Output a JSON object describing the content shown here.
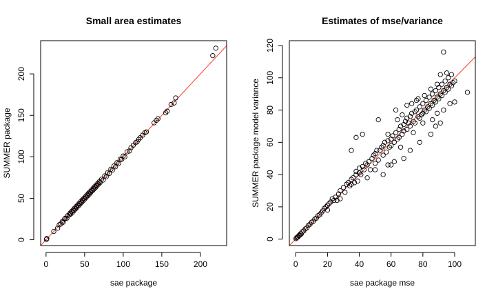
{
  "chart_data": [
    {
      "type": "scatter",
      "title": "Small area estimates",
      "xlabel": "sae package",
      "ylabel": "SUMMER package",
      "xlim": [
        -7,
        234
      ],
      "ylim": [
        -7,
        240
      ],
      "xticks": [
        0,
        50,
        100,
        150,
        200
      ],
      "yticks": [
        0,
        50,
        100,
        150,
        200
      ],
      "reference_line": {
        "slope": 1,
        "intercept": 0,
        "color": "#ff3b30"
      },
      "series": [
        {
          "points": [
            [
              0.5,
              0.5
            ],
            [
              1,
              1.5
            ],
            [
              10,
              10
            ],
            [
              15,
              14
            ],
            [
              17,
              18
            ],
            [
              19,
              19
            ],
            [
              21,
              22
            ],
            [
              22,
              21
            ],
            [
              24,
              25
            ],
            [
              25,
              26
            ],
            [
              27,
              26
            ],
            [
              28,
              29
            ],
            [
              30,
              30
            ],
            [
              31,
              32
            ],
            [
              32,
              31
            ],
            [
              33,
              34
            ],
            [
              34,
              33
            ],
            [
              35,
              36
            ],
            [
              36,
              35
            ],
            [
              37,
              38
            ],
            [
              38,
              37
            ],
            [
              39,
              40
            ],
            [
              40,
              39
            ],
            [
              41,
              42
            ],
            [
              42,
              41
            ],
            [
              43,
              44
            ],
            [
              44,
              43
            ],
            [
              45,
              46
            ],
            [
              46,
              45
            ],
            [
              47,
              48
            ],
            [
              48,
              47
            ],
            [
              49,
              50
            ],
            [
              50,
              49
            ],
            [
              51,
              52
            ],
            [
              52,
              51
            ],
            [
              53,
              54
            ],
            [
              54,
              53
            ],
            [
              55,
              56
            ],
            [
              56,
              55
            ],
            [
              57,
              58
            ],
            [
              58,
              57
            ],
            [
              59,
              60
            ],
            [
              60,
              59
            ],
            [
              61,
              62
            ],
            [
              62,
              61
            ],
            [
              63,
              64
            ],
            [
              64,
              63
            ],
            [
              65,
              66
            ],
            [
              66,
              65
            ],
            [
              67,
              68
            ],
            [
              68,
              67
            ],
            [
              69,
              70
            ],
            [
              70,
              69
            ],
            [
              72,
              73
            ],
            [
              74,
              72
            ],
            [
              76,
              77
            ],
            [
              78,
              76
            ],
            [
              80,
              81
            ],
            [
              82,
              80
            ],
            [
              84,
              85
            ],
            [
              86,
              84
            ],
            [
              88,
              89
            ],
            [
              90,
              88
            ],
            [
              92,
              93
            ],
            [
              94,
              92
            ],
            [
              96,
              97
            ],
            [
              98,
              97
            ],
            [
              100,
              101
            ],
            [
              102,
              100
            ],
            [
              105,
              106
            ],
            [
              108,
              107
            ],
            [
              110,
              111
            ],
            [
              113,
              114
            ],
            [
              116,
              117
            ],
            [
              118,
              118
            ],
            [
              120,
              121
            ],
            [
              122,
              123
            ],
            [
              125,
              126
            ],
            [
              128,
              129
            ],
            [
              130,
              130
            ],
            [
              140,
              141
            ],
            [
              143,
              144
            ],
            [
              145,
              146
            ],
            [
              155,
              153
            ],
            [
              157,
              155
            ],
            [
              162,
              163
            ],
            [
              166,
              165
            ],
            [
              168,
              171
            ],
            [
              216,
              222
            ],
            [
              220,
              231
            ]
          ]
        }
      ]
    },
    {
      "type": "scatter",
      "title": "Estimates of mse/variance",
      "xlabel": "sae package mse",
      "ylabel": "SUMMER package model variance",
      "xlim": [
        -4,
        113
      ],
      "ylim": [
        -4,
        123
      ],
      "xticks": [
        0,
        20,
        40,
        60,
        80,
        100
      ],
      "yticks": [
        0,
        20,
        40,
        60,
        80,
        100,
        120
      ],
      "reference_line": {
        "slope": 1,
        "intercept": 0,
        "color": "#ff3b30"
      },
      "series": [
        {
          "points": [
            [
              0.2,
              0.3
            ],
            [
              0.5,
              0.8
            ],
            [
              1,
              1.2
            ],
            [
              1.5,
              1.3
            ],
            [
              2,
              2.2
            ],
            [
              2.5,
              2.4
            ],
            [
              3,
              3.3
            ],
            [
              3.5,
              3.2
            ],
            [
              4,
              4.5
            ],
            [
              5,
              5
            ],
            [
              6,
              6.3
            ],
            [
              7,
              7
            ],
            [
              8,
              8.5
            ],
            [
              9,
              9.2
            ],
            [
              10,
              10.5
            ],
            [
              11,
              11
            ],
            [
              12,
              12.5
            ],
            [
              13,
              13
            ],
            [
              14,
              14.5
            ],
            [
              15,
              15
            ],
            [
              16,
              16.2
            ],
            [
              17,
              17.5
            ],
            [
              18,
              19
            ],
            [
              19,
              20
            ],
            [
              20,
              21
            ],
            [
              20,
              18
            ],
            [
              21,
              22
            ],
            [
              22,
              23
            ],
            [
              23,
              25
            ],
            [
              24,
              24
            ],
            [
              25,
              26
            ],
            [
              26,
              24
            ],
            [
              27,
              28
            ],
            [
              28,
              30
            ],
            [
              28,
              25
            ],
            [
              30,
              32
            ],
            [
              31,
              29
            ],
            [
              32,
              34
            ],
            [
              33,
              35
            ],
            [
              34,
              33
            ],
            [
              35,
              37
            ],
            [
              35,
              34
            ],
            [
              36,
              38
            ],
            [
              37,
              35
            ],
            [
              38,
              40
            ],
            [
              38,
              42
            ],
            [
              39,
              36
            ],
            [
              40,
              41
            ],
            [
              40,
              44
            ],
            [
              41,
              40
            ],
            [
              42,
              45
            ],
            [
              43,
              43
            ],
            [
              44,
              47
            ],
            [
              45,
              46
            ],
            [
              46,
              48
            ],
            [
              47,
              43
            ],
            [
              48,
              50
            ],
            [
              49,
              52
            ],
            [
              50,
              53
            ],
            [
              50,
              47
            ],
            [
              51,
              55
            ],
            [
              52,
              49
            ],
            [
              53,
              55
            ],
            [
              54,
              57
            ],
            [
              55,
              58
            ],
            [
              55,
              52
            ],
            [
              56,
              60
            ],
            [
              57,
              54
            ],
            [
              58,
              61
            ],
            [
              59,
              57
            ],
            [
              60,
              62
            ],
            [
              60,
              58
            ],
            [
              61,
              64
            ],
            [
              62,
              60
            ],
            [
              63,
              66
            ],
            [
              64,
              62
            ],
            [
              65,
              68
            ],
            [
              65,
              63
            ],
            [
              66,
              70
            ],
            [
              67,
              65
            ],
            [
              68,
              71
            ],
            [
              68,
              67
            ],
            [
              69,
              73
            ],
            [
              70,
              68
            ],
            [
              70,
              75
            ],
            [
              71,
              72
            ],
            [
              72,
              76
            ],
            [
              72,
              70
            ],
            [
              73,
              78
            ],
            [
              74,
              73
            ],
            [
              75,
              79
            ],
            [
              75,
              72
            ],
            [
              76,
              80
            ],
            [
              77,
              76
            ],
            [
              78,
              82
            ],
            [
              78,
              75
            ],
            [
              79,
              77
            ],
            [
              80,
              84
            ],
            [
              80,
              78
            ],
            [
              81,
              80
            ],
            [
              82,
              86
            ],
            [
              82,
              79
            ],
            [
              83,
              82
            ],
            [
              84,
              88
            ],
            [
              84,
              81
            ],
            [
              85,
              84
            ],
            [
              86,
              90
            ],
            [
              86,
              83
            ],
            [
              87,
              86
            ],
            [
              88,
              92
            ],
            [
              88,
              85
            ],
            [
              89,
              88
            ],
            [
              90,
              94
            ],
            [
              90,
              87
            ],
            [
              91,
              90
            ],
            [
              92,
              96
            ],
            [
              92,
              89
            ],
            [
              93,
              92
            ],
            [
              94,
              98
            ],
            [
              94,
              91
            ],
            [
              95,
              94
            ],
            [
              96,
              100
            ],
            [
              96,
              93
            ],
            [
              97,
              96
            ],
            [
              98,
              102
            ],
            [
              98,
              95
            ],
            [
              99,
              97
            ],
            [
              100,
              85
            ],
            [
              93,
              116
            ],
            [
              95,
              103
            ],
            [
              100,
              98
            ],
            [
              108,
              91
            ],
            [
              38,
              63
            ],
            [
              52,
              74
            ],
            [
              42,
              65
            ],
            [
              35,
              55
            ],
            [
              58,
              65
            ],
            [
              63,
              80
            ],
            [
              70,
              83
            ],
            [
              76,
              86
            ],
            [
              55,
              40
            ],
            [
              60,
              46
            ],
            [
              45,
              38
            ],
            [
              50,
              43
            ],
            [
              62,
              48
            ],
            [
              68,
              50
            ],
            [
              72,
              55
            ],
            [
              78,
              60
            ],
            [
              85,
              65
            ],
            [
              88,
              70
            ],
            [
              91,
              72
            ],
            [
              66,
              57
            ],
            [
              58,
              46
            ],
            [
              74,
              66
            ],
            [
              80,
              72
            ],
            [
              86,
              74
            ],
            [
              89,
              78
            ],
            [
              93,
              80
            ],
            [
              97,
              84
            ],
            [
              64,
              74
            ],
            [
              67,
              77
            ],
            [
              73,
              84
            ],
            [
              77,
              87
            ],
            [
              81,
              89
            ],
            [
              85,
              93
            ],
            [
              89,
              96
            ],
            [
              91,
              102
            ]
          ]
        }
      ]
    }
  ]
}
